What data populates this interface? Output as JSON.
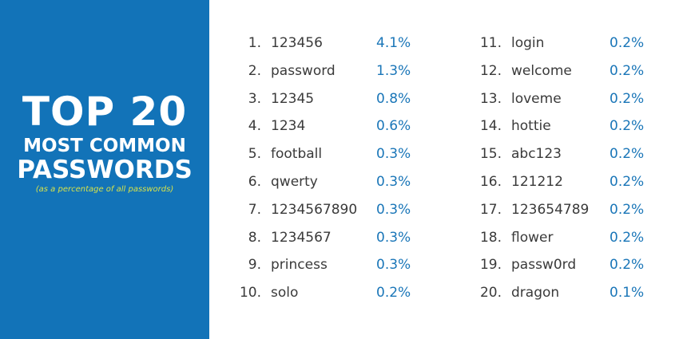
{
  "header": {
    "title": "TOP 20",
    "subtitle": "MOST COMMON",
    "subject": "PASSWORDS",
    "note": "(as a percentage of all passwords)"
  },
  "list": {
    "rows": [
      {
        "rank": "1.",
        "password": "123456",
        "share": "4.1%"
      },
      {
        "rank": "2.",
        "password": "password",
        "share": "1.3%"
      },
      {
        "rank": "3.",
        "password": "12345",
        "share": "0.8%"
      },
      {
        "rank": "4.",
        "password": "1234",
        "share": "0.6%"
      },
      {
        "rank": "5.",
        "password": "football",
        "share": "0.3%"
      },
      {
        "rank": "6.",
        "password": "qwerty",
        "share": "0.3%"
      },
      {
        "rank": "7.",
        "password": "1234567890",
        "share": "0.3%"
      },
      {
        "rank": "8.",
        "password": "1234567",
        "share": "0.3%"
      },
      {
        "rank": "9.",
        "password": "princess",
        "share": "0.3%"
      },
      {
        "rank": "10.",
        "password": "solo",
        "share": "0.2%"
      },
      {
        "rank": "11.",
        "password": "login",
        "share": "0.2%"
      },
      {
        "rank": "12.",
        "password": "welcome",
        "share": "0.2%"
      },
      {
        "rank": "13.",
        "password": "loveme",
        "share": "0.2%"
      },
      {
        "rank": "14.",
        "password": "hottie",
        "share": "0.2%"
      },
      {
        "rank": "15.",
        "password": "abc123",
        "share": "0.2%"
      },
      {
        "rank": "16.",
        "password": "121212",
        "share": "0.2%"
      },
      {
        "rank": "17.",
        "password": "123654789",
        "share": "0.2%"
      },
      {
        "rank": "18.",
        "password": "flower",
        "share": "0.2%"
      },
      {
        "rank": "19.",
        "password": "passw0rd",
        "share": "0.2%"
      },
      {
        "rank": "20.",
        "password": "dragon",
        "share": "0.1%"
      }
    ]
  }
}
